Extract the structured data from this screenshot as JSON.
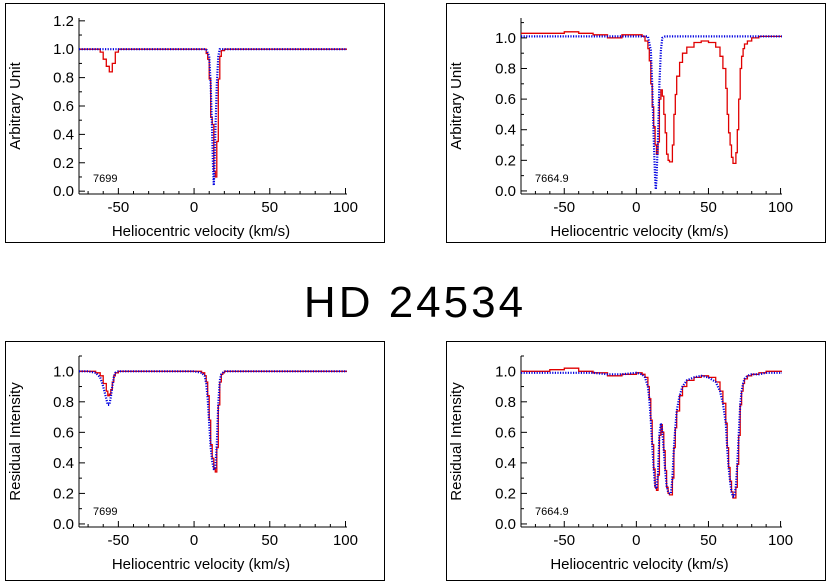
{
  "title": "HD 24534",
  "colors": {
    "observed": "#e00000",
    "model": "#0000e0",
    "axis": "#000000"
  },
  "chart_data": [
    {
      "type": "line",
      "xlabel": "Heliocentric velocity (km/s)",
      "ylabel": "Arbitrary Unit",
      "annotation": "7699",
      "xlim": [
        -76,
        101
      ],
      "ylim": [
        -0.02,
        1.22
      ],
      "xticks": [
        "-50",
        "0",
        "50",
        "100"
      ],
      "yticks": [
        "0.0",
        "0.2",
        "0.4",
        "0.6",
        "0.8",
        "1.0",
        "1.2"
      ],
      "series": [
        {
          "style": "observed-step",
          "x": [
            -76,
            -65,
            -62,
            -60,
            -58,
            -56,
            -54,
            -52,
            -50,
            -40,
            -20,
            0,
            5,
            8,
            9,
            10,
            11,
            12,
            13,
            14,
            15,
            16,
            17,
            18,
            20,
            30,
            50,
            70,
            90,
            101
          ],
          "y": [
            1.0,
            1.0,
            0.98,
            0.93,
            0.88,
            0.84,
            0.9,
            0.98,
            1.0,
            1.0,
            1.0,
            1.0,
            1.0,
            0.97,
            0.93,
            0.79,
            0.52,
            0.47,
            0.14,
            0.1,
            0.35,
            0.79,
            0.95,
            0.99,
            1.0,
            1.0,
            1.0,
            1.0,
            1.0,
            1.0
          ]
        },
        {
          "style": "model-dotted",
          "x": [
            -76,
            -50,
            0,
            8,
            10,
            11,
            12,
            12.5,
            13,
            13.5,
            14,
            15,
            16,
            17,
            20,
            50,
            101
          ],
          "y": [
            1.0,
            1.0,
            1.0,
            1.0,
            0.95,
            0.75,
            0.4,
            0.18,
            0.04,
            0.18,
            0.4,
            0.75,
            0.95,
            1.0,
            1.0,
            1.0,
            1.0
          ]
        }
      ]
    },
    {
      "type": "line",
      "xlabel": "Heliocentric velocity (km/s)",
      "ylabel": "Arbitrary Unit",
      "annotation": "7664.9",
      "xlim": [
        -80,
        101
      ],
      "ylim": [
        -0.02,
        1.13
      ],
      "xticks": [
        "-50",
        "0",
        "50",
        "100"
      ],
      "yticks": [
        "0.0",
        "0.2",
        "0.4",
        "0.6",
        "0.8",
        "1.0"
      ],
      "series": [
        {
          "style": "observed-step",
          "x": [
            -80,
            -70,
            -60,
            -50,
            -40,
            -30,
            -20,
            -10,
            0,
            4,
            6,
            8,
            9,
            10,
            11,
            12,
            13,
            14,
            15,
            16,
            17,
            18,
            19,
            20,
            21,
            22,
            23,
            24,
            25,
            26,
            27,
            28,
            30,
            32,
            35,
            40,
            45,
            50,
            55,
            58,
            60,
            62,
            63,
            64,
            65,
            66,
            67,
            68,
            69,
            70,
            71,
            72,
            73,
            74,
            75,
            77,
            80,
            85,
            90,
            95,
            101
          ],
          "y": [
            1.03,
            1.03,
            1.03,
            1.04,
            1.03,
            1.02,
            1.0,
            1.02,
            1.02,
            1.01,
            0.98,
            0.93,
            0.85,
            0.7,
            0.55,
            0.42,
            0.3,
            0.24,
            0.32,
            0.6,
            0.66,
            0.62,
            0.5,
            0.38,
            0.24,
            0.2,
            0.19,
            0.19,
            0.3,
            0.5,
            0.63,
            0.75,
            0.84,
            0.9,
            0.94,
            0.97,
            0.98,
            0.97,
            0.94,
            0.88,
            0.8,
            0.67,
            0.5,
            0.38,
            0.3,
            0.22,
            0.18,
            0.18,
            0.25,
            0.4,
            0.6,
            0.8,
            0.88,
            0.93,
            0.96,
            0.98,
            1.0,
            1.01,
            1.01,
            1.01,
            1.01
          ]
        },
        {
          "style": "model-dotted",
          "x": [
            -80,
            -50,
            0,
            8,
            10,
            11,
            12,
            13,
            13.5,
            14,
            15,
            16,
            17,
            18,
            20,
            50,
            101
          ],
          "y": [
            1.01,
            1.01,
            1.01,
            1.01,
            0.92,
            0.7,
            0.35,
            0.08,
            0.01,
            0.08,
            0.35,
            0.7,
            0.92,
            1.0,
            1.01,
            1.01,
            1.01
          ]
        }
      ]
    },
    {
      "type": "line",
      "xlabel": "Heliocentric velocity (km/s)",
      "ylabel": "Residual Intensity",
      "annotation": "7699",
      "xlim": [
        -76,
        101
      ],
      "ylim": [
        -0.02,
        1.1
      ],
      "xticks": [
        "-50",
        "0",
        "50",
        "100"
      ],
      "yticks": [
        "0.0",
        "0.2",
        "0.4",
        "0.6",
        "0.8",
        "1.0"
      ],
      "series": [
        {
          "style": "observed-step",
          "x": [
            -76,
            -70,
            -65,
            -62,
            -60,
            -58,
            -57,
            -56,
            -55,
            -54,
            -53,
            -52,
            -50,
            -45,
            -20,
            0,
            5,
            7,
            8,
            9,
            10,
            11,
            12,
            13,
            14,
            15,
            16,
            17,
            18,
            19,
            20,
            25,
            50,
            80,
            101
          ],
          "y": [
            1.0,
            1.0,
            0.99,
            0.97,
            0.92,
            0.87,
            0.84,
            0.85,
            0.88,
            0.93,
            0.97,
            0.99,
            1.0,
            1.0,
            1.0,
            1.0,
            0.99,
            0.97,
            0.93,
            0.84,
            0.68,
            0.52,
            0.43,
            0.36,
            0.34,
            0.5,
            0.78,
            0.93,
            0.98,
            0.99,
            1.0,
            1.0,
            1.0,
            1.0,
            1.0
          ]
        },
        {
          "style": "model-dotted",
          "x": [
            -76,
            -70,
            -65,
            -62,
            -60,
            -58,
            -57,
            -56,
            -55,
            -54,
            -53,
            -52,
            -50,
            -45,
            -20,
            0,
            5,
            7,
            8,
            9,
            10,
            11,
            12,
            13,
            14,
            15,
            16,
            17,
            18,
            19,
            20,
            25,
            50,
            80,
            101
          ],
          "y": [
            1.0,
            1.0,
            0.99,
            0.96,
            0.9,
            0.82,
            0.78,
            0.78,
            0.83,
            0.9,
            0.96,
            0.99,
            1.0,
            1.0,
            1.0,
            1.0,
            0.99,
            0.97,
            0.92,
            0.82,
            0.66,
            0.5,
            0.41,
            0.36,
            0.36,
            0.52,
            0.79,
            0.94,
            0.98,
            0.99,
            1.0,
            1.0,
            1.0,
            1.0,
            1.0
          ]
        }
      ]
    },
    {
      "type": "line",
      "xlabel": "Heliocentric velocity (km/s)",
      "ylabel": "Residual Intensity",
      "annotation": "7664.9",
      "xlim": [
        -80,
        101
      ],
      "ylim": [
        -0.02,
        1.1
      ],
      "xticks": [
        "-50",
        "0",
        "50",
        "100"
      ],
      "yticks": [
        "0.0",
        "0.2",
        "0.4",
        "0.6",
        "0.8",
        "1.0"
      ],
      "series": [
        {
          "style": "observed-step",
          "x": [
            -80,
            -70,
            -60,
            -50,
            -40,
            -30,
            -20,
            -10,
            0,
            4,
            6,
            8,
            9,
            10,
            11,
            12,
            13,
            14,
            15,
            16,
            17,
            18,
            19,
            20,
            21,
            22,
            23,
            24,
            25,
            26,
            27,
            28,
            30,
            32,
            35,
            40,
            45,
            50,
            55,
            58,
            60,
            62,
            63,
            64,
            65,
            66,
            67,
            68,
            69,
            70,
            71,
            72,
            73,
            74,
            75,
            77,
            80,
            85,
            90,
            95,
            101
          ],
          "y": [
            1.0,
            1.0,
            1.01,
            1.02,
            1.0,
            0.99,
            0.97,
            0.98,
            0.99,
            0.98,
            0.96,
            0.9,
            0.82,
            0.68,
            0.52,
            0.36,
            0.24,
            0.22,
            0.32,
            0.58,
            0.65,
            0.6,
            0.48,
            0.35,
            0.24,
            0.2,
            0.19,
            0.19,
            0.3,
            0.5,
            0.63,
            0.74,
            0.84,
            0.9,
            0.94,
            0.96,
            0.97,
            0.96,
            0.93,
            0.87,
            0.79,
            0.66,
            0.5,
            0.37,
            0.28,
            0.21,
            0.17,
            0.17,
            0.24,
            0.39,
            0.58,
            0.78,
            0.87,
            0.92,
            0.95,
            0.97,
            0.98,
            0.99,
            1.0,
            1.0,
            1.0
          ]
        },
        {
          "style": "model-dotted",
          "x": [
            -80,
            -70,
            -60,
            -50,
            -40,
            -30,
            -20,
            -10,
            0,
            4,
            6,
            8,
            9,
            10,
            11,
            12,
            13,
            14,
            15,
            16,
            17,
            18,
            19,
            20,
            21,
            22,
            23,
            24,
            25,
            26,
            27,
            28,
            30,
            32,
            35,
            40,
            45,
            50,
            55,
            58,
            60,
            62,
            63,
            64,
            65,
            66,
            67,
            68,
            69,
            70,
            71,
            72,
            73,
            74,
            75,
            77,
            80,
            85,
            90,
            95,
            101
          ],
          "y": [
            0.99,
            0.99,
            0.99,
            0.99,
            0.99,
            0.99,
            0.98,
            0.98,
            0.99,
            0.98,
            0.96,
            0.9,
            0.82,
            0.68,
            0.52,
            0.36,
            0.25,
            0.23,
            0.33,
            0.59,
            0.66,
            0.61,
            0.48,
            0.35,
            0.25,
            0.21,
            0.2,
            0.2,
            0.3,
            0.5,
            0.63,
            0.74,
            0.84,
            0.9,
            0.94,
            0.96,
            0.97,
            0.96,
            0.93,
            0.87,
            0.79,
            0.66,
            0.5,
            0.37,
            0.28,
            0.21,
            0.18,
            0.18,
            0.25,
            0.39,
            0.58,
            0.78,
            0.87,
            0.92,
            0.95,
            0.97,
            0.98,
            0.98,
            0.99,
            0.99,
            0.99
          ]
        }
      ]
    }
  ]
}
